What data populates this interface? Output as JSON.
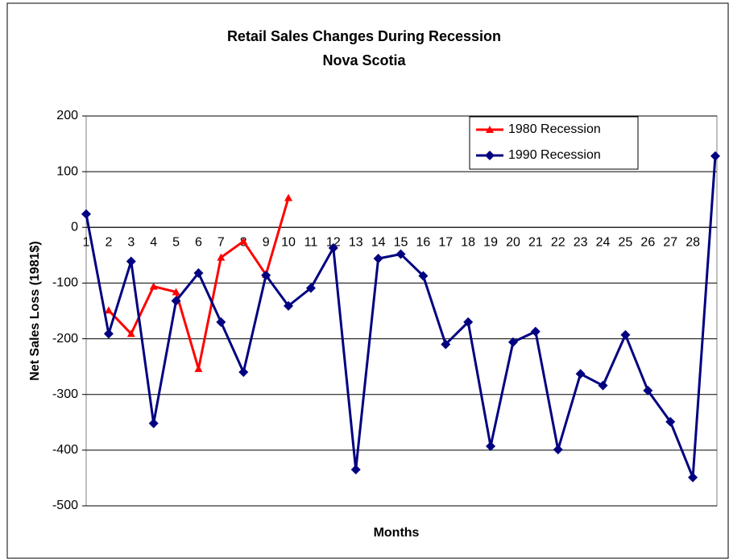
{
  "chart_data": {
    "type": "line",
    "title": [
      "Retail Sales Changes During Recession",
      "Nova Scotia"
    ],
    "x_label": "Months",
    "y_label": "Net Sales Loss (1981$)",
    "categories": [
      "1",
      "2",
      "3",
      "4",
      "5",
      "6",
      "7",
      "8",
      "9",
      "10",
      "11",
      "12",
      "13",
      "14",
      "15",
      "16",
      "17",
      "18",
      "19",
      "20",
      "21",
      "22",
      "23",
      "24",
      "25",
      "26",
      "27",
      "28",
      null
    ],
    "series": [
      {
        "name": "1980 Recession",
        "color": "#ff0000",
        "marker": "triangle",
        "values": [
          null,
          -149,
          -191,
          -106,
          -116,
          -254,
          -54,
          -25,
          -85,
          53,
          null,
          null,
          null,
          null,
          null,
          null,
          null,
          null,
          null,
          null,
          null,
          null,
          null,
          null,
          null,
          null,
          null,
          null,
          null
        ]
      },
      {
        "name": "1990 Recession",
        "color": "#000080",
        "marker": "diamond",
        "values": [
          24,
          -191,
          -61,
          -352,
          -132,
          -82,
          -170,
          -260,
          -86,
          -141,
          -109,
          -37,
          -435,
          -56,
          -48,
          -87,
          -210,
          -170,
          -393,
          -206,
          -187,
          -399,
          -263,
          -284,
          -193,
          -293,
          -349,
          -449,
          128
        ]
      }
    ],
    "ylim": [
      -500,
      200
    ],
    "yticks": [
      -500,
      -400,
      -300,
      -200,
      -100,
      0,
      100,
      200
    ],
    "grid": true,
    "legend": "top-right"
  }
}
